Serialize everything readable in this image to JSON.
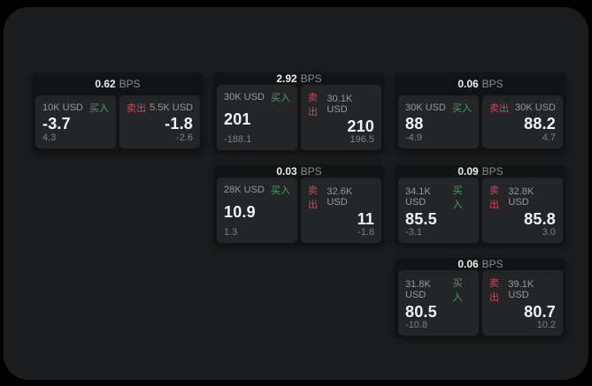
{
  "labels": {
    "bps_unit": "BPS",
    "buy": "买入",
    "sell": "卖出"
  },
  "colors": {
    "page_bg": "#000000",
    "screen_bg": "#1b1c1d",
    "card_bg": "#121314",
    "panel_bg": "#242527",
    "buy_green": "#46a065",
    "sell_red": "#c9485c",
    "value_white": "#f3f4f5",
    "label_gray": "#97989b"
  },
  "cards": [
    {
      "bps": "0.62",
      "buy": {
        "amount": "10K USD",
        "price": "-3.7",
        "delta": "4.3"
      },
      "sell": {
        "amount": "5.5K USD",
        "price": "-1.8",
        "delta": "-2.6"
      }
    },
    {
      "bps": "2.92",
      "buy": {
        "amount": "30K USD",
        "price": "201",
        "delta": "-188.1"
      },
      "sell": {
        "amount": "30.1K USD",
        "price": "210",
        "delta": "196.5"
      }
    },
    {
      "bps": "0.06",
      "buy": {
        "amount": "30K USD",
        "price": "88",
        "delta": "-4.9"
      },
      "sell": {
        "amount": "30K USD",
        "price": "88.2",
        "delta": "4.7"
      }
    },
    {
      "bps": "0.03",
      "buy": {
        "amount": "28K USD",
        "price": "10.9",
        "delta": "1.3"
      },
      "sell": {
        "amount": "32.6K USD",
        "price": "11",
        "delta": "-1.8"
      }
    },
    {
      "bps": "0.09",
      "buy": {
        "amount": "34.1K USD",
        "price": "85.5",
        "delta": "-3.1"
      },
      "sell": {
        "amount": "32.8K USD",
        "price": "85.8",
        "delta": "3.0"
      }
    },
    {
      "bps": "0.06",
      "buy": {
        "amount": "31.8K USD",
        "price": "80.5",
        "delta": "-10.8"
      },
      "sell": {
        "amount": "39.1K USD",
        "price": "80.7",
        "delta": "10.2"
      }
    }
  ]
}
